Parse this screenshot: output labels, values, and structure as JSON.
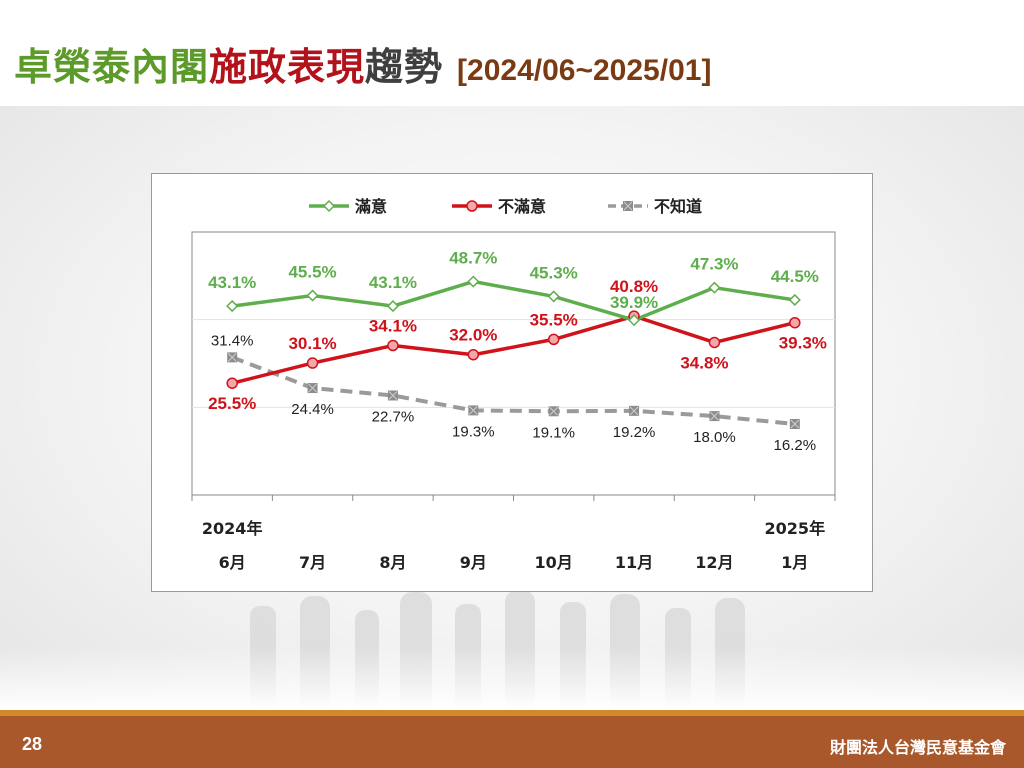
{
  "slide": {
    "title_parts": [
      {
        "text": "卓榮泰內閣",
        "color": "#5c9a2a"
      },
      {
        "text": "施政表現",
        "color": "#b3121b"
      },
      {
        "text": "趨勢",
        "color": "#3f3f3f"
      }
    ],
    "title_range": "[2024/06~2025/01]",
    "page_number": "28",
    "organization": "財團法人台灣民意基金會"
  },
  "chart_data": {
    "type": "line",
    "categories": [
      "6月",
      "7月",
      "8月",
      "9月",
      "10月",
      "11月",
      "12月",
      "1月"
    ],
    "year_labels": {
      "start": "2024年",
      "end": "2025年"
    },
    "ylim": [
      0,
      60
    ],
    "grid": "horizontal",
    "legend_position": "top",
    "series": [
      {
        "name": "滿意",
        "color": "#5fae4d",
        "marker": "diamond",
        "style": "solid",
        "values": [
          43.1,
          45.5,
          43.1,
          48.7,
          45.3,
          39.9,
          47.3,
          44.5
        ],
        "labels": [
          "43.1%",
          "45.5%",
          "43.1%",
          "48.7%",
          "45.3%",
          "39.9%",
          "47.3%",
          "44.5%"
        ]
      },
      {
        "name": "不滿意",
        "color": "#d0121b",
        "marker": "circle",
        "style": "solid",
        "values": [
          25.5,
          30.1,
          34.1,
          32.0,
          35.5,
          40.8,
          34.8,
          39.3
        ],
        "labels": [
          "25.5%",
          "30.1%",
          "34.1%",
          "32.0%",
          "35.5%",
          "40.8%",
          "34.8%",
          "39.3%"
        ]
      },
      {
        "name": "不知道",
        "color": "#9a9a9a",
        "marker": "square-x",
        "style": "dashed",
        "values": [
          31.4,
          24.4,
          22.7,
          19.3,
          19.1,
          19.2,
          18.0,
          16.2
        ],
        "labels": [
          "31.4%",
          "24.4%",
          "22.7%",
          "19.3%",
          "19.1%",
          "19.2%",
          "18.0%",
          "16.2%"
        ]
      }
    ]
  }
}
